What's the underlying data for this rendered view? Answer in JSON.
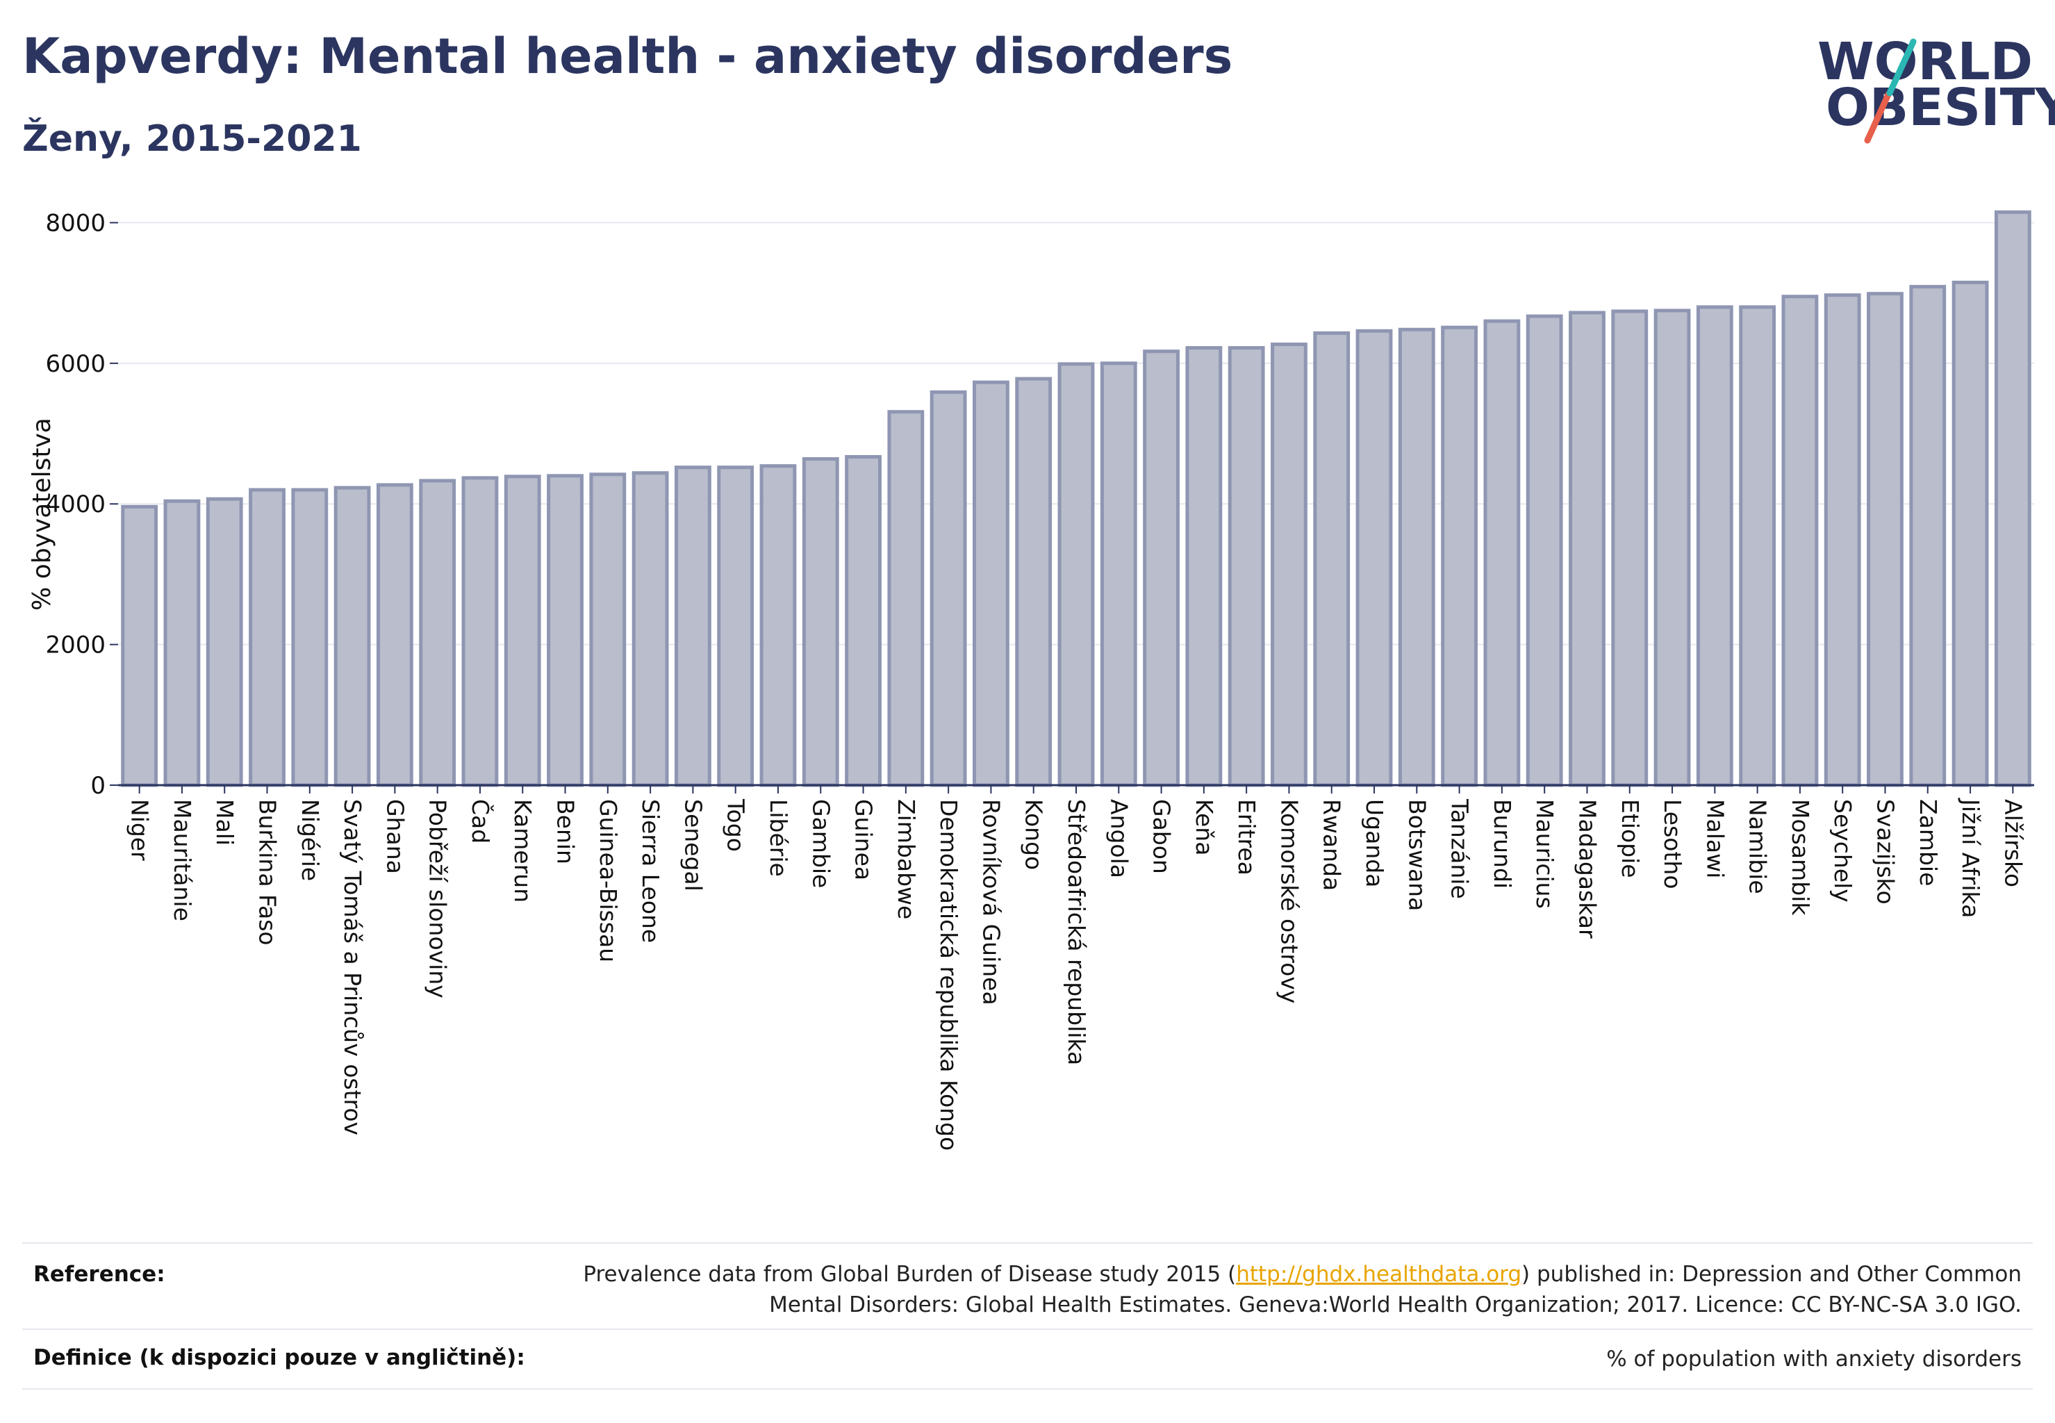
{
  "header": {
    "title": "Kapverdy: Mental health - anxiety disorders",
    "subtitle": "Ženy, 2015-2021"
  },
  "logo": {
    "line1": "WORLD",
    "line2": "OBESITY",
    "colors": {
      "text": "#2b3560",
      "slash_top": "#2bb7b3",
      "slash_bottom": "#e8604c"
    }
  },
  "chart_data": {
    "type": "bar",
    "title": "",
    "ylabel": "% obyvatelstva",
    "xlabel": "",
    "ylim": [
      0,
      8400
    ],
    "yticks": [
      0,
      2000,
      4000,
      6000,
      8000
    ],
    "grid": true,
    "bar_color": "#b9bdcc",
    "bar_edge_color": "#8f96b2",
    "categories": [
      "Niger",
      "Mauritánie",
      "Mali",
      "Burkina Faso",
      "Nigérie",
      "Svatý Tomáš a Princův ostrov",
      "Ghana",
      "Pobřeží slonoviny",
      "Čad",
      "Kamerun",
      "Benin",
      "Guinea-Bissau",
      "Sierra Leone",
      "Senegal",
      "Togo",
      "Libérie",
      "Gambie",
      "Guinea",
      "Zimbabwe",
      "Demokratická republika Kongo",
      "Rovníková Guinea",
      "Kongo",
      "Středoafrická republika",
      "Angola",
      "Gabon",
      "Keňa",
      "Eritrea",
      "Komorské ostrovy",
      "Rwanda",
      "Uganda",
      "Botswana",
      "Tanzánie",
      "Burundi",
      "Mauricius",
      "Madagaskar",
      "Etiopie",
      "Lesotho",
      "Malawi",
      "Namibie",
      "Mosambik",
      "Seychely",
      "Svazijsko",
      "Zambie",
      "Jižní Afrika",
      "Alžírsko"
    ],
    "values": [
      3960,
      4040,
      4070,
      4200,
      4200,
      4230,
      4270,
      4330,
      4370,
      4390,
      4400,
      4420,
      4440,
      4520,
      4520,
      4540,
      4640,
      4670,
      5310,
      5590,
      5730,
      5780,
      5990,
      6000,
      6170,
      6220,
      6220,
      6270,
      6430,
      6460,
      6480,
      6510,
      6600,
      6670,
      6720,
      6740,
      6750,
      6800,
      6800,
      6950,
      6970,
      6990,
      7090,
      7150,
      8150
    ]
  },
  "footer": {
    "reference_label": "Reference:",
    "reference_text_before": "Prevalence data from Global Burden of Disease study 2015 (",
    "reference_link": "http://ghdx.healthdata.org",
    "reference_text_after": ") published in: Depression and Other Common",
    "reference_text_line2": "Mental Disorders: Global Health Estimates. Geneva:World Health Organization; 2017. Licence: CC BY-NC-SA 3.0 IGO.",
    "definition_label": "Definice (k dispozici pouze v angličtině):",
    "definition_text": "% of population with anxiety disorders"
  }
}
